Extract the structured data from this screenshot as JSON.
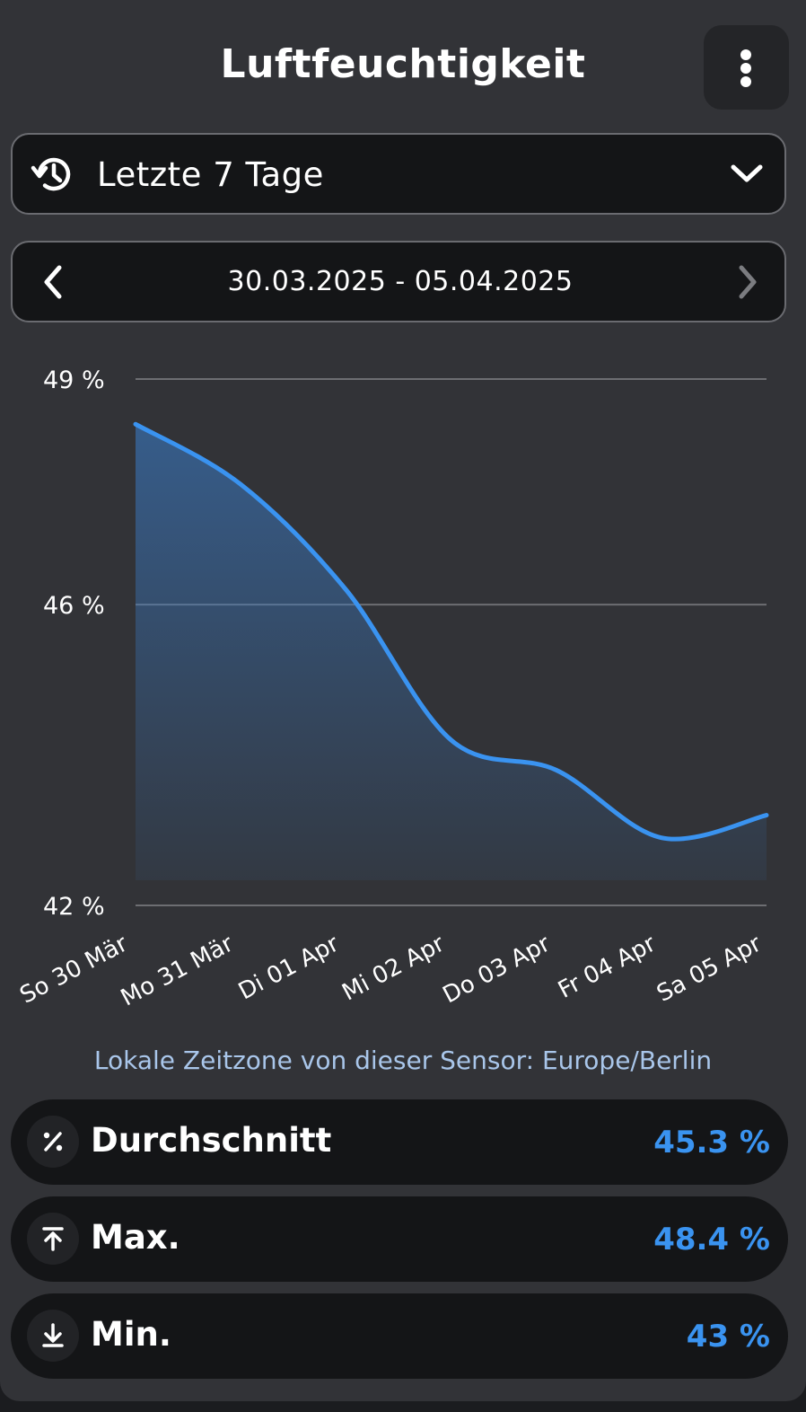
{
  "header": {
    "title": "Luftfeuchtigkeit",
    "menu_icon": "more-vertical-icon"
  },
  "range_select": {
    "icon": "history-icon",
    "label": "Letzte 7 Tage",
    "chevron_icon": "chevron-down-icon"
  },
  "date_nav": {
    "prev_icon": "chevron-left-icon",
    "range": "30.03.2025 - 05.04.2025",
    "next_icon": "chevron-right-icon"
  },
  "chart_data": {
    "type": "area",
    "x": [
      "So 30 Mär",
      "Mo 31 Mär",
      "Di 01 Apr",
      "Mi 02 Apr",
      "Do 03 Apr",
      "Fr 04 Apr",
      "Sa 05 Apr"
    ],
    "y_tick_labels": [
      "49 %",
      "46 %",
      "42 %"
    ],
    "y_ticks": [
      49,
      46,
      42
    ],
    "ylim": [
      42,
      49
    ],
    "series": [
      {
        "values": [
          48.4,
          47.6,
          46.2,
          44.2,
          43.8,
          42.9,
          43.2
        ]
      }
    ],
    "grid": true,
    "line_color": "#3a93f0"
  },
  "timezone_note": "Lokale Zeitzone von dieser Sensor: Europe/Berlin",
  "stats": [
    {
      "icon": "percent-icon",
      "label": "Durchschnitt",
      "value": "45.3 %"
    },
    {
      "icon": "max-upload-icon",
      "label": "Max.",
      "value": "48.4 %"
    },
    {
      "icon": "min-download-icon",
      "label": "Min.",
      "value": "43 %"
    }
  ],
  "colors": {
    "accent": "#3a93f0",
    "card_bg": "#323337",
    "control_bg": "#141517"
  }
}
